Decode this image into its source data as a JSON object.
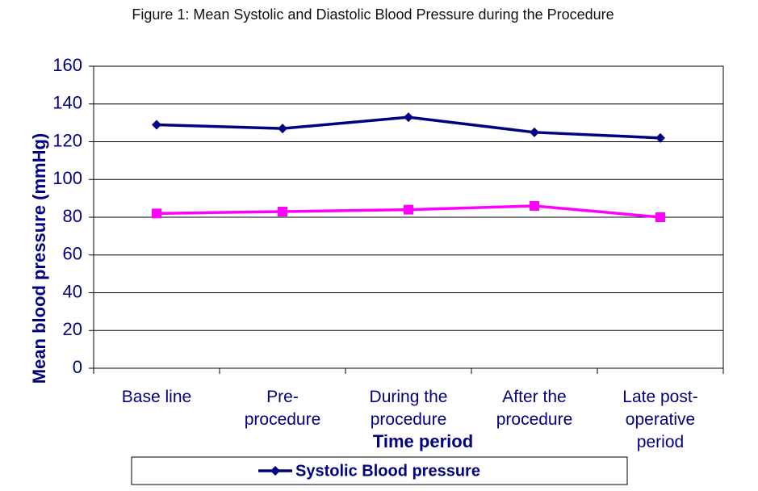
{
  "chart_data": {
    "type": "line",
    "title": "Figure 1: Mean Systolic and Diastolic Blood Pressure during the Procedure",
    "x_label": "Time period",
    "y_label": "Mean blood pressure (mmHg)",
    "categories": [
      "Base line",
      "Pre-\nprocedure",
      "During the\nprocedure",
      "After the\nprocedure",
      "Late post-\noperative\nperiod"
    ],
    "series": [
      {
        "name": "Systolic Blood pressure",
        "color": "#000080",
        "marker": "diamond",
        "values": [
          129,
          127,
          133,
          125,
          122
        ]
      },
      {
        "color": "#ff00ff",
        "marker": "square",
        "values": [
          82,
          83,
          84,
          86,
          80
        ]
      }
    ],
    "ylim": [
      0,
      160
    ],
    "yticks": [
      0,
      20,
      40,
      60,
      80,
      100,
      120,
      140,
      160
    ],
    "grid": true,
    "legend": "bottom"
  }
}
